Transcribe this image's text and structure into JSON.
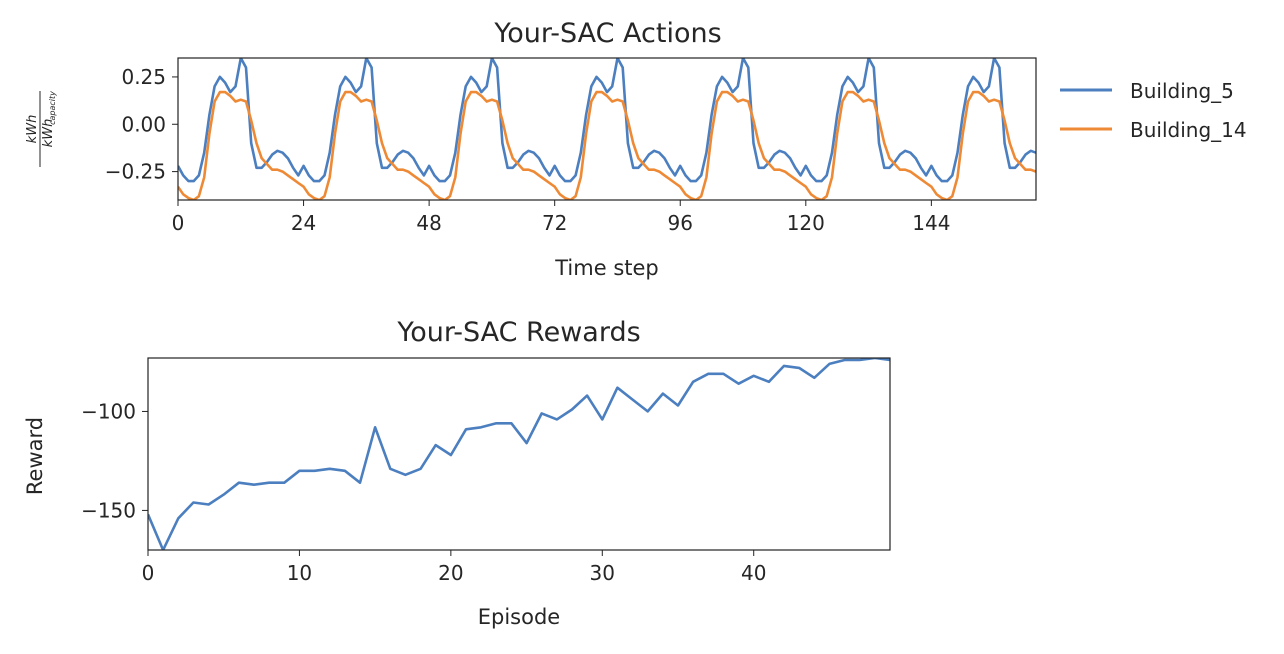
{
  "chart_data": [
    {
      "type": "line",
      "title": "Your-SAC Actions",
      "xlabel": "Time step",
      "ylabel_numerator": "kWh",
      "ylabel_denominator": "kWh",
      "ylabel_denominator_subscript": "capacity",
      "xlim": [
        0,
        164
      ],
      "ylim": [
        -0.4,
        0.35
      ],
      "xticks": [
        0,
        24,
        48,
        72,
        96,
        120,
        144
      ],
      "xtick_labels": [
        "0",
        "24",
        "48",
        "72",
        "96",
        "120",
        "144"
      ],
      "yticks": [
        0.25,
        0.0,
        -0.25
      ],
      "ytick_labels": [
        "0.25",
        "0.00",
        "−0.25"
      ],
      "legend_position": "outside-right",
      "grid": false,
      "period": 24,
      "series": [
        {
          "name": "Building_5",
          "color": "#4c7fbf",
          "day_profile": [
            -0.22,
            -0.27,
            -0.3,
            -0.3,
            -0.27,
            -0.15,
            0.05,
            0.2,
            0.25,
            0.22,
            0.17,
            0.2,
            0.35,
            0.3,
            -0.1,
            -0.23,
            -0.23,
            -0.2,
            -0.16,
            -0.14,
            -0.15,
            -0.18,
            -0.23,
            -0.27
          ],
          "values": []
        },
        {
          "name": "Building_14",
          "color": "#ee8a36",
          "day_profile": [
            -0.33,
            -0.37,
            -0.39,
            -0.4,
            -0.38,
            -0.28,
            -0.05,
            0.12,
            0.17,
            0.17,
            0.15,
            0.12,
            0.13,
            0.12,
            0.02,
            -0.1,
            -0.18,
            -0.21,
            -0.24,
            -0.24,
            -0.25,
            -0.27,
            -0.29,
            -0.31
          ],
          "values": []
        }
      ]
    },
    {
      "type": "line",
      "title": "Your-SAC Rewards",
      "xlabel": "Episode",
      "ylabel": "Reward",
      "xlim": [
        0,
        49
      ],
      "ylim": [
        -170,
        -73
      ],
      "xticks": [
        0,
        10,
        20,
        30,
        40
      ],
      "xtick_labels": [
        "0",
        "10",
        "20",
        "30",
        "40"
      ],
      "yticks": [
        -100,
        -150
      ],
      "ytick_labels": [
        "−100",
        "−150"
      ],
      "grid": false,
      "series": [
        {
          "color": "#4c7fbf",
          "x": [
            0,
            1,
            2,
            3,
            4,
            5,
            6,
            7,
            8,
            9,
            10,
            11,
            12,
            13,
            14,
            15,
            16,
            17,
            18,
            19,
            20,
            21,
            22,
            23,
            24,
            25,
            26,
            27,
            28,
            29,
            30,
            31,
            32,
            33,
            34,
            35,
            36,
            37,
            38,
            39,
            40,
            41,
            42,
            43,
            44,
            45,
            46,
            47,
            48,
            49
          ],
          "values": [
            -152,
            -170,
            -154,
            -146,
            -147,
            -142,
            -136,
            -137,
            -136,
            -136,
            -130,
            -130,
            -129,
            -130,
            -136,
            -108,
            -129,
            -132,
            -129,
            -117,
            -122,
            -109,
            -108,
            -106,
            -106,
            -116,
            -101,
            -104,
            -99,
            -92,
            -104,
            -88,
            -94,
            -100,
            -91,
            -97,
            -85,
            -81,
            -81,
            -86,
            -82,
            -85,
            -77,
            -78,
            -83,
            -76,
            -74,
            -74,
            -73,
            -74
          ]
        }
      ]
    }
  ]
}
